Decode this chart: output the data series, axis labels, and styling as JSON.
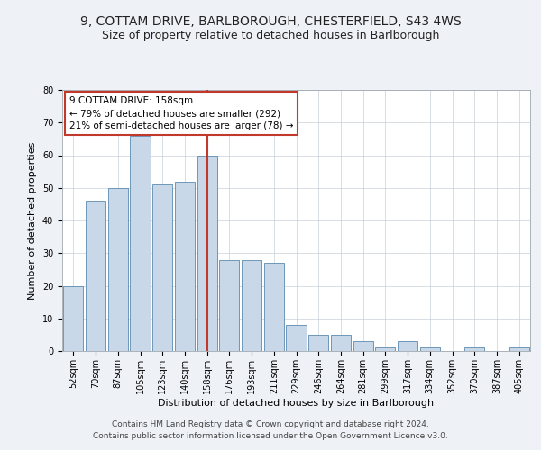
{
  "title_line1": "9, COTTAM DRIVE, BARLBOROUGH, CHESTERFIELD, S43 4WS",
  "title_line2": "Size of property relative to detached houses in Barlborough",
  "xlabel": "Distribution of detached houses by size in Barlborough",
  "ylabel": "Number of detached properties",
  "categories": [
    "52sqm",
    "70sqm",
    "87sqm",
    "105sqm",
    "123sqm",
    "140sqm",
    "158sqm",
    "176sqm",
    "193sqm",
    "211sqm",
    "229sqm",
    "246sqm",
    "264sqm",
    "281sqm",
    "299sqm",
    "317sqm",
    "334sqm",
    "352sqm",
    "370sqm",
    "387sqm",
    "405sqm"
  ],
  "values": [
    20,
    46,
    50,
    66,
    51,
    52,
    60,
    28,
    28,
    27,
    8,
    5,
    5,
    3,
    1,
    3,
    1,
    0,
    1,
    0,
    1
  ],
  "bar_color": "#c8d8e8",
  "bar_edge_color": "#5a8ab0",
  "highlight_index": 6,
  "vline_color": "#c0392b",
  "annotation_text": "9 COTTAM DRIVE: 158sqm\n← 79% of detached houses are smaller (292)\n21% of semi-detached houses are larger (78) →",
  "annotation_box_color": "#c0392b",
  "ylim": [
    0,
    80
  ],
  "yticks": [
    0,
    10,
    20,
    30,
    40,
    50,
    60,
    70,
    80
  ],
  "footer_line1": "Contains HM Land Registry data © Crown copyright and database right 2024.",
  "footer_line2": "Contains public sector information licensed under the Open Government Licence v3.0.",
  "bg_color": "#eef2f7",
  "plot_bg_color": "#ffffff",
  "grid_color": "#c8d0d8",
  "title_fontsize": 10,
  "subtitle_fontsize": 9,
  "axis_label_fontsize": 8,
  "tick_fontsize": 7,
  "footer_fontsize": 6.5
}
